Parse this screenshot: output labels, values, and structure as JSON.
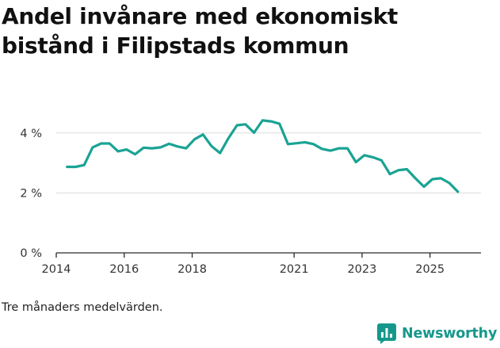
{
  "chart_data": {
    "type": "line",
    "title": "Andel invånare med ekonomiskt bistånd i Filipstads kommun",
    "title_lines": [
      "Andel invånare med ekonomiskt",
      "bistånd i Filipstads kommun"
    ],
    "xlabel": "",
    "ylabel": "",
    "ylim": [
      0,
      5
    ],
    "xlim": [
      2014.0,
      2026.5
    ],
    "yticks": [
      {
        "value": 0,
        "label": "0 %"
      },
      {
        "value": 2,
        "label": "2 %"
      },
      {
        "value": 4,
        "label": "4 %"
      }
    ],
    "xticks": [
      {
        "value": 2014,
        "label": "2014"
      },
      {
        "value": 2016,
        "label": "2016"
      },
      {
        "value": 2018,
        "label": "2018"
      },
      {
        "value": 2021,
        "label": "2021"
      },
      {
        "value": 2023,
        "label": "2023"
      },
      {
        "value": 2025,
        "label": "2025"
      }
    ],
    "grid": true,
    "series": [
      {
        "name": "Andel invånare med ekonomiskt bistånd",
        "color": "#1aa394",
        "points": [
          [
            2014.32,
            2.87
          ],
          [
            2014.57,
            2.87
          ],
          [
            2014.82,
            2.93
          ],
          [
            2015.07,
            3.52
          ],
          [
            2015.32,
            3.65
          ],
          [
            2015.57,
            3.65
          ],
          [
            2015.82,
            3.39
          ],
          [
            2016.07,
            3.45
          ],
          [
            2016.32,
            3.29
          ],
          [
            2016.57,
            3.51
          ],
          [
            2016.82,
            3.49
          ],
          [
            2017.07,
            3.52
          ],
          [
            2017.32,
            3.64
          ],
          [
            2017.57,
            3.55
          ],
          [
            2017.82,
            3.49
          ],
          [
            2018.07,
            3.79
          ],
          [
            2018.32,
            3.95
          ],
          [
            2018.57,
            3.56
          ],
          [
            2018.82,
            3.33
          ],
          [
            2019.07,
            3.83
          ],
          [
            2019.32,
            4.26
          ],
          [
            2019.57,
            4.29
          ],
          [
            2019.82,
            4.01
          ],
          [
            2020.07,
            4.42
          ],
          [
            2020.32,
            4.39
          ],
          [
            2020.57,
            4.31
          ],
          [
            2020.82,
            3.63
          ],
          [
            2021.07,
            3.66
          ],
          [
            2021.32,
            3.69
          ],
          [
            2021.57,
            3.63
          ],
          [
            2021.82,
            3.47
          ],
          [
            2022.07,
            3.41
          ],
          [
            2022.32,
            3.49
          ],
          [
            2022.57,
            3.49
          ],
          [
            2022.82,
            3.03
          ],
          [
            2023.07,
            3.26
          ],
          [
            2023.32,
            3.19
          ],
          [
            2023.57,
            3.09
          ],
          [
            2023.82,
            2.63
          ],
          [
            2024.07,
            2.76
          ],
          [
            2024.32,
            2.79
          ],
          [
            2024.57,
            2.49
          ],
          [
            2024.82,
            2.21
          ],
          [
            2025.07,
            2.46
          ],
          [
            2025.32,
            2.49
          ],
          [
            2025.57,
            2.33
          ],
          [
            2025.82,
            2.04
          ]
        ]
      }
    ],
    "footnote": "Tre månaders medelvärden."
  },
  "brand": {
    "name": "Newsworthy",
    "logo_color": "#15988b",
    "icon": "bar-chart-logo-icon"
  },
  "colors": {
    "grid": "#dcdcdc",
    "axis": "#2b2b2b",
    "text": "#333333"
  }
}
